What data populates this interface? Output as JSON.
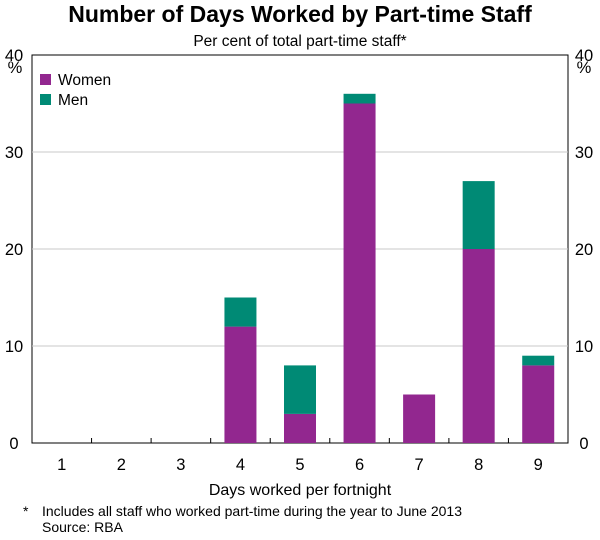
{
  "chart_data": {
    "type": "bar",
    "stacked": true,
    "title": "Number of Days Worked by Part-time Staff",
    "subtitle": "Per cent of total part-time staff*",
    "xlabel": "Days worked per fortnight",
    "ylabel_left": "%",
    "ylabel_right": "%",
    "categories": [
      "1",
      "2",
      "3",
      "4",
      "5",
      "6",
      "7",
      "8",
      "9"
    ],
    "series": [
      {
        "name": "Women",
        "color": "#92278f",
        "values": [
          0,
          0,
          0,
          12,
          3,
          35,
          5,
          20,
          8
        ]
      },
      {
        "name": "Men",
        "color": "#008a75",
        "values": [
          0,
          0,
          0,
          3,
          5,
          1,
          0,
          7,
          1
        ]
      }
    ],
    "ylim": [
      0,
      40
    ],
    "yticks": [
      "0",
      "10",
      "20",
      "30",
      "40"
    ],
    "grid": true,
    "legend": "top-left",
    "footnote": "Includes all staff who worked part-time during the year to June 2013",
    "footnote_marker": "*",
    "source": "Source: RBA"
  }
}
